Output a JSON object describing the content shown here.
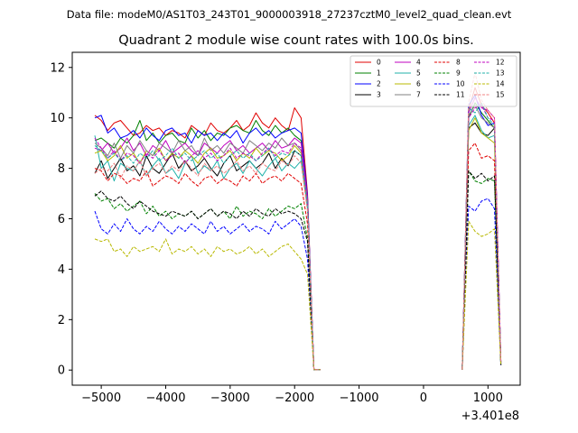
{
  "chart_data": {
    "type": "line",
    "suptitle": "Data file: modeM0/AS1T03_243T01_9000003918_27237cztM0_level2_quad_clean.evt",
    "title": "Quadrant 2 module wise count rates with 100.0s bins.",
    "xlabel": "",
    "ylabel": "",
    "x_offset_label": "+3.401e8",
    "xlim": [
      -5450,
      1500
    ],
    "ylim": [
      -0.6,
      12.6
    ],
    "xticks": [
      -5000,
      -4000,
      -3000,
      -2000,
      -1000,
      0,
      1000
    ],
    "xtick_labels": [
      "−5000",
      "−4000",
      "−3000",
      "−2000",
      "−1000",
      "0",
      "1000"
    ],
    "yticks": [
      0,
      2,
      4,
      6,
      8,
      10,
      12
    ],
    "ytick_labels": [
      "0",
      "2",
      "4",
      "6",
      "8",
      "10",
      "12"
    ],
    "legend_position": "top-right",
    "x_segments": [
      {
        "start": -5100,
        "step": 100,
        "count": 36
      },
      {
        "start": 600,
        "step": 100,
        "count": 7
      }
    ],
    "series": [
      {
        "name": "0",
        "color": "#e00000",
        "dash": "solid",
        "first": [
          10.1,
          9.9,
          9.5,
          9.8,
          9.9,
          9.6,
          9.3,
          9.4,
          9.7,
          9.5,
          9.6,
          9.3,
          9.5,
          9.4,
          9.2,
          9.7,
          9.5,
          9.3,
          9.8,
          9.5,
          9.4,
          9.6,
          9.9,
          9.5,
          9.7,
          10.2,
          9.8,
          9.6,
          10.0,
          9.7,
          9.5,
          10.4,
          10.0,
          7.0,
          0.02,
          0.02
        ],
        "second": [
          0.02,
          10.3,
          11.2,
          10.5,
          10.2,
          9.8,
          0.3
        ]
      },
      {
        "name": "1",
        "color": "#008000",
        "dash": "solid",
        "first": [
          9.1,
          9.2,
          9.0,
          8.8,
          9.2,
          9.0,
          9.3,
          9.9,
          9.1,
          9.4,
          9.0,
          9.3,
          9.4,
          9.1,
          9.0,
          9.6,
          9.2,
          9.5,
          9.1,
          9.4,
          9.3,
          9.6,
          9.7,
          9.5,
          9.4,
          9.9,
          9.5,
          9.3,
          9.7,
          9.4,
          9.6,
          9.3,
          9.1,
          6.8,
          0.02,
          0.02
        ],
        "second": [
          0.02,
          10.0,
          10.6,
          10.2,
          9.9,
          9.6,
          0.3
        ]
      },
      {
        "name": "2",
        "color": "#0000ff",
        "dash": "solid",
        "first": [
          10.0,
          10.1,
          9.4,
          9.6,
          9.2,
          9.3,
          9.5,
          9.2,
          9.6,
          9.3,
          9.1,
          9.5,
          9.6,
          9.3,
          9.4,
          9.0,
          9.5,
          9.3,
          9.4,
          9.1,
          9.4,
          9.2,
          9.5,
          9.0,
          9.4,
          9.6,
          9.3,
          9.5,
          9.2,
          9.4,
          9.5,
          9.6,
          9.4,
          6.9,
          0.02,
          0.02
        ],
        "second": [
          0.02,
          10.5,
          10.9,
          10.1,
          9.7,
          9.8,
          0.3
        ]
      },
      {
        "name": "3",
        "color": "#000000",
        "dash": "solid",
        "first": [
          7.8,
          8.3,
          7.6,
          8.0,
          8.4,
          7.9,
          8.1,
          7.7,
          8.5,
          8.0,
          7.8,
          8.2,
          8.6,
          8.0,
          8.3,
          7.9,
          8.1,
          8.4,
          8.0,
          7.7,
          8.2,
          8.5,
          7.9,
          8.1,
          8.3,
          8.0,
          8.2,
          8.6,
          8.0,
          8.4,
          8.1,
          8.7,
          8.5,
          6.5,
          0.02,
          0.02
        ],
        "second": [
          0.02,
          9.6,
          9.8,
          9.4,
          9.3,
          9.6,
          0.2
        ]
      },
      {
        "name": "4",
        "color": "#bf00bf",
        "dash": "solid",
        "first": [
          8.8,
          8.7,
          9.0,
          8.6,
          8.8,
          9.2,
          8.7,
          9.0,
          8.5,
          8.9,
          8.7,
          9.1,
          8.6,
          8.8,
          9.0,
          8.7,
          8.5,
          9.0,
          8.8,
          8.6,
          8.9,
          9.1,
          8.7,
          8.9,
          8.6,
          8.8,
          9.0,
          8.7,
          9.1,
          8.8,
          8.9,
          9.2,
          9.0,
          6.8,
          0.02,
          0.02
        ],
        "second": [
          0.02,
          10.2,
          10.8,
          10.4,
          10.3,
          10.0,
          0.3
        ]
      },
      {
        "name": "5",
        "color": "#20b2aa",
        "dash": "solid",
        "first": [
          9.3,
          8.0,
          8.3,
          7.5,
          8.2,
          8.0,
          7.9,
          8.3,
          7.7,
          8.1,
          8.4,
          7.8,
          8.0,
          7.6,
          8.2,
          8.5,
          7.8,
          8.1,
          7.9,
          8.3,
          7.6,
          8.0,
          8.2,
          7.8,
          8.3,
          8.0,
          7.7,
          8.1,
          8.4,
          7.9,
          8.2,
          8.0,
          8.3,
          6.4,
          0.02,
          0.02
        ],
        "second": [
          0.02,
          9.7,
          10.1,
          9.5,
          9.2,
          9.3,
          0.2
        ]
      },
      {
        "name": "6",
        "color": "#b8b800",
        "dash": "solid",
        "first": [
          8.6,
          8.7,
          8.3,
          8.5,
          8.9,
          8.4,
          8.6,
          8.2,
          8.7,
          8.5,
          8.8,
          8.3,
          8.6,
          8.4,
          8.7,
          8.5,
          8.2,
          8.6,
          8.8,
          8.4,
          8.5,
          8.7,
          8.3,
          8.6,
          8.4,
          8.8,
          8.5,
          8.7,
          8.6,
          8.3,
          8.5,
          8.9,
          8.6,
          6.5,
          0.02,
          0.02
        ],
        "second": [
          0.02,
          9.5,
          10.0,
          9.4,
          9.2,
          9.0,
          0.2
        ]
      },
      {
        "name": "7",
        "color": "#808080",
        "dash": "solid",
        "first": [
          9.0,
          8.8,
          8.5,
          9.0,
          8.4,
          8.9,
          8.6,
          9.1,
          8.7,
          8.5,
          9.0,
          8.8,
          8.6,
          9.1,
          8.7,
          8.9,
          8.5,
          9.2,
          8.7,
          8.9,
          8.6,
          9.0,
          8.8,
          8.6,
          9.1,
          8.9,
          8.7,
          9.0,
          8.8,
          9.2,
          8.9,
          9.0,
          8.7,
          6.7,
          0.02,
          0.02
        ],
        "second": [
          0.02,
          10.1,
          10.5,
          10.0,
          9.8,
          9.6,
          0.3
        ]
      },
      {
        "name": "8",
        "color": "#e00000",
        "dash": "dashed",
        "first": [
          8.0,
          7.9,
          7.5,
          7.8,
          7.7,
          7.4,
          7.6,
          7.5,
          7.9,
          7.3,
          7.5,
          7.7,
          7.6,
          7.4,
          7.8,
          7.5,
          7.3,
          7.6,
          7.7,
          7.4,
          7.6,
          7.5,
          7.3,
          7.7,
          7.5,
          7.8,
          7.4,
          7.6,
          7.7,
          7.5,
          7.8,
          7.6,
          7.4,
          5.8,
          0.02,
          0.02
        ],
        "second": [
          0.02,
          8.7,
          9.0,
          8.4,
          8.5,
          8.3,
          0.2
        ]
      },
      {
        "name": "9",
        "color": "#008000",
        "dash": "dashed",
        "first": [
          7.0,
          6.7,
          6.8,
          6.4,
          6.6,
          6.3,
          6.5,
          6.7,
          6.2,
          6.5,
          6.1,
          6.3,
          6.0,
          6.2,
          6.1,
          6.3,
          6.0,
          6.2,
          6.4,
          6.1,
          6.3,
          6.0,
          6.5,
          6.1,
          6.3,
          6.2,
          6.0,
          6.4,
          6.1,
          6.3,
          6.5,
          6.4,
          6.6,
          5.2,
          0.02,
          0.02
        ],
        "second": [
          0.02,
          7.9,
          7.5,
          7.4,
          7.6,
          7.5,
          0.2
        ]
      },
      {
        "name": "10",
        "color": "#0000ff",
        "dash": "dashed",
        "first": [
          6.3,
          5.6,
          5.4,
          5.8,
          5.5,
          6.0,
          5.6,
          5.4,
          5.7,
          5.5,
          5.9,
          5.6,
          5.4,
          5.7,
          5.5,
          5.8,
          5.6,
          5.4,
          5.9,
          5.5,
          5.7,
          5.4,
          5.6,
          5.8,
          5.5,
          5.7,
          5.6,
          5.4,
          5.9,
          5.6,
          5.8,
          6.0,
          5.7,
          4.4,
          0.02,
          0.02
        ],
        "second": [
          0.02,
          6.5,
          6.3,
          6.7,
          6.8,
          6.4,
          0.2
        ]
      },
      {
        "name": "11",
        "color": "#000000",
        "dash": "dashed",
        "first": [
          6.9,
          7.1,
          6.8,
          6.7,
          6.9,
          6.6,
          6.4,
          6.7,
          6.5,
          6.3,
          6.2,
          6.1,
          6.3,
          6.2,
          6.1,
          6.3,
          6.0,
          6.2,
          6.4,
          6.1,
          6.3,
          6.2,
          6.0,
          6.3,
          6.1,
          6.4,
          6.2,
          6.1,
          6.4,
          6.2,
          6.3,
          6.2,
          6.0,
          5.1,
          0.02,
          0.02
        ],
        "second": [
          0.02,
          7.9,
          7.6,
          7.8,
          7.5,
          7.7,
          0.2
        ]
      },
      {
        "name": "12",
        "color": "#bf00bf",
        "dash": "dashed",
        "first": [
          9.2,
          8.8,
          8.4,
          8.7,
          8.3,
          8.6,
          8.5,
          8.2,
          8.6,
          8.4,
          8.7,
          8.3,
          8.5,
          8.6,
          8.2,
          8.5,
          8.7,
          8.4,
          8.6,
          8.3,
          8.5,
          8.8,
          8.4,
          8.6,
          8.5,
          8.3,
          8.6,
          8.8,
          8.5,
          8.7,
          8.6,
          9.0,
          8.8,
          6.6,
          0.02,
          0.02
        ],
        "second": [
          0.02,
          10.0,
          10.4,
          10.5,
          10.0,
          9.9,
          0.3
        ]
      },
      {
        "name": "13",
        "color": "#20b2aa",
        "dash": "dashed",
        "first": [
          8.9,
          8.7,
          8.4,
          8.6,
          8.3,
          8.5,
          8.2,
          8.6,
          8.4,
          8.7,
          8.3,
          8.5,
          8.8,
          8.4,
          8.6,
          8.3,
          8.5,
          8.7,
          8.4,
          8.6,
          8.2,
          8.5,
          8.7,
          8.4,
          8.6,
          8.3,
          8.5,
          8.8,
          8.4,
          8.6,
          8.5,
          8.7,
          8.5,
          6.5,
          0.02,
          0.02
        ],
        "second": [
          0.02,
          10.4,
          10.2,
          10.6,
          10.0,
          9.7,
          0.3
        ]
      },
      {
        "name": "14",
        "color": "#b8b800",
        "dash": "dashed",
        "first": [
          5.2,
          5.1,
          5.2,
          4.7,
          4.8,
          4.5,
          4.9,
          4.7,
          4.8,
          4.9,
          4.7,
          5.2,
          4.6,
          4.8,
          4.7,
          4.9,
          4.6,
          4.8,
          4.5,
          4.9,
          4.7,
          4.8,
          4.6,
          4.7,
          4.9,
          4.6,
          4.8,
          4.5,
          4.7,
          4.9,
          5.0,
          4.7,
          4.4,
          3.8,
          0.02,
          0.02
        ],
        "second": [
          0.02,
          5.9,
          5.5,
          5.3,
          5.4,
          5.6,
          0.2
        ]
      },
      {
        "name": "15",
        "color": "#f08080",
        "dash": "dashed",
        "first": [
          7.8,
          8.0,
          7.9,
          8.2,
          7.6,
          8.1,
          7.9,
          8.3,
          7.7,
          8.0,
          8.2,
          7.8,
          8.1,
          7.9,
          8.3,
          8.0,
          7.7,
          8.2,
          7.9,
          8.1,
          7.8,
          8.0,
          8.3,
          7.9,
          8.1,
          7.8,
          8.2,
          8.0,
          7.9,
          8.3,
          8.1,
          8.5,
          8.2,
          6.3,
          0.02,
          0.02
        ],
        "second": [
          0.02,
          10.6,
          11.8,
          10.7,
          10.3,
          10.0,
          0.3
        ]
      }
    ]
  }
}
